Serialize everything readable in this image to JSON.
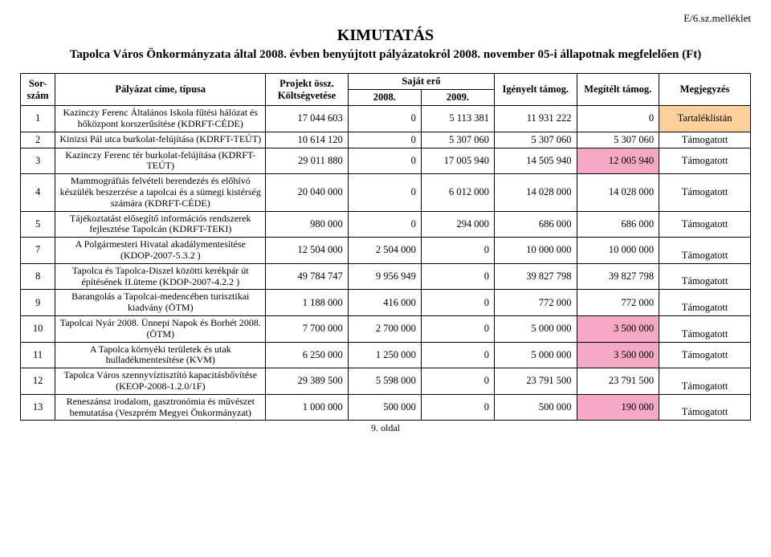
{
  "header": {
    "top_right": "E/6.sz.melléklet",
    "title_main": "KIMUTATÁS",
    "subtitle": "Tapolca Város Önkormányzata által 2008. évben benyújtott pályázatokról 2008. november 05-i állapotnak megfelelően (Ft)"
  },
  "columns": {
    "sor": "Sor-szám",
    "palyazat": "Pályázat címe, típusa",
    "projekt": "Projekt össz. Költségvetése",
    "sajat": "Saját erő",
    "sajat_2008": "2008.",
    "sajat_2009": "2009.",
    "igenyelt": "Igényelt támog.",
    "megitelt": "Megítélt támog.",
    "megjegyzes": "Megjegyzés"
  },
  "rows": [
    {
      "sor": "1",
      "title": "Kazinczy Ferenc Általános Iskola fűtési hálózat és hőközpont korszerűsítése (KDRFT-CÉDE)",
      "proj": "17 044 603",
      "s2008": "0",
      "s2009": "5 113 381",
      "ig": "11 931 222",
      "meg": "0",
      "mj": "Tartaléklistán",
      "mj_class": "orange"
    },
    {
      "sor": "2",
      "title": "Kinizsi Pál utca burkolat-felújítása (KDRFT-TEÚT)",
      "proj": "10 614 120",
      "s2008": "0",
      "s2009": "5 307 060",
      "ig": "5 307 060",
      "meg": "5 307 060",
      "mj": "Támogatott"
    },
    {
      "sor": "3",
      "title": "Kazinczy Ferenc tér burkolat-felújítása (KDRFT-TEÚT)",
      "proj": "29 011 880",
      "s2008": "0",
      "s2009": "17 005 940",
      "ig": "14 505 940",
      "meg": "12 005 940",
      "meg_class": "pink",
      "mj": "Támogatott"
    },
    {
      "sor": "4",
      "title": "Mammográfiás felvételi berendezés és előhívó készülék beszerzése a tapolcai és a sümegi kistérség számára (KDRFT-CÉDE)",
      "proj": "20 040 000",
      "s2008": "0",
      "s2009": "6 012 000",
      "ig": "14 028 000",
      "meg": "14 028 000",
      "mj": "Támogatott"
    },
    {
      "sor": "5",
      "title": "Tájékoztatást elősegítő információs rendszerek fejlesztése Tapolcán (KDRFT-TEKI)",
      "proj": "980 000",
      "s2008": "0",
      "s2009": "294 000",
      "ig": "686 000",
      "meg": "686 000",
      "mj": "Támogatott"
    },
    {
      "sor": "7",
      "title": "A Polgármesteri Hivatal akadálymentesítése (KDOP-2007-5.3.2 )",
      "proj": "12 504 000",
      "s2008": "2 504 000",
      "s2009": "0",
      "ig": "10 000 000",
      "meg": "10 000 000",
      "mj": "Támogatott",
      "mj_valign": "bottom"
    },
    {
      "sor": "8",
      "title": "Tapolca és Tapolca-Diszel közötti kerékpár út építésének II.üteme (KDOP-2007-4.2.2 )",
      "proj": "49 784 747",
      "s2008": "9 956 949",
      "s2009": "0",
      "ig": "39 827 798",
      "meg": "39 827 798",
      "mj": "Támogatott",
      "mj_valign": "bottom"
    },
    {
      "sor": "9",
      "title": "Barangolás a Tapolcai-medencében turisztikai kiadvány (ÖTM)",
      "proj": "1 188 000",
      "s2008": "416 000",
      "s2009": "0",
      "ig": "772 000",
      "meg": "772 000",
      "mj": "Támogatott",
      "mj_valign": "bottom"
    },
    {
      "sor": "10",
      "title": "Tapolcai Nyár 2008. Ünnepi Napok és Borhét 2008.          (ÖTM)",
      "proj": "7 700 000",
      "s2008": "2 700 000",
      "s2009": "0",
      "ig": "5 000 000",
      "meg": "3 500 000",
      "meg_class": "pink",
      "mj": "Támogatott",
      "mj_valign": "bottom"
    },
    {
      "sor": "11",
      "title": "A Tapolca környéki területek és utak hulladékmentesítése (KVM)",
      "proj": "6 250 000",
      "s2008": "1 250 000",
      "s2009": "0",
      "ig": "5 000 000",
      "meg": "3 500 000",
      "meg_class": "pink",
      "mj": "Támogatott"
    },
    {
      "sor": "12",
      "title": "Tapolca Város szennyvíztisztító kapacitásbővítése (KEOP-2008-1.2.0/1F)",
      "proj": "29 389 500",
      "s2008": "5 598 000",
      "s2009": "0",
      "ig": "23 791 500",
      "meg": "23 791 500",
      "mj": "Támogatott",
      "mj_valign": "bottom"
    },
    {
      "sor": "13",
      "title": "Reneszánsz irodalom, gasztronómia és művészet bemutatása (Veszprém Megyei Önkormányzat)",
      "proj": "1 000 000",
      "s2008": "500 000",
      "s2009": "0",
      "ig": "500 000",
      "meg": "190 000",
      "meg_class": "pink",
      "mj": "Támogatott",
      "mj_valign": "bottom"
    }
  ],
  "footer": "9. oldal"
}
